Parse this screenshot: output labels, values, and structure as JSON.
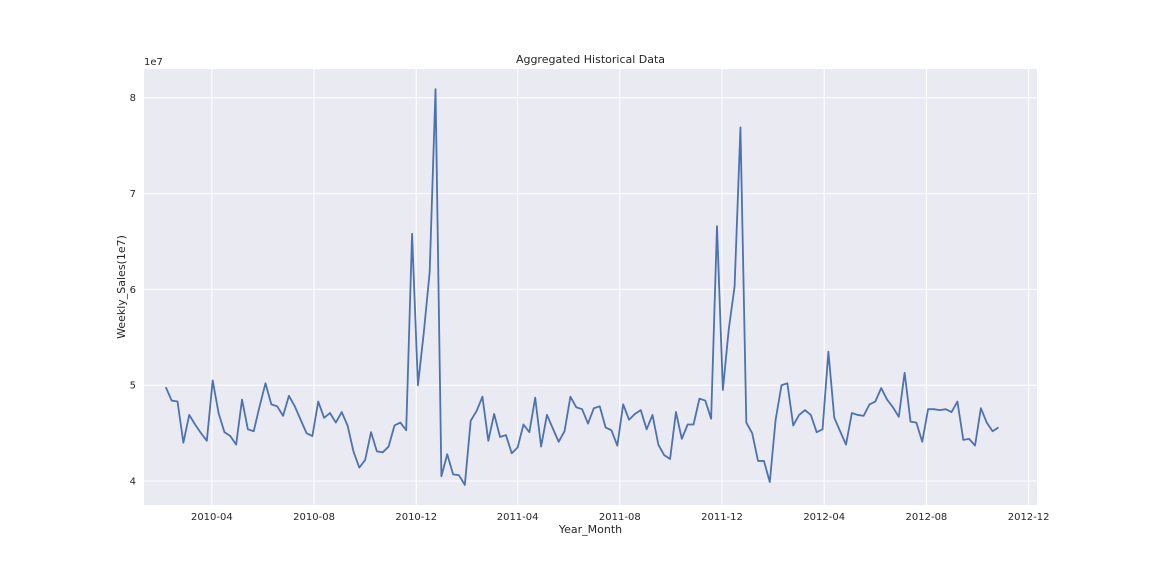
{
  "chart_data": {
    "type": "line",
    "title": "Aggregated Historical Data",
    "xlabel": "Year_Month",
    "ylabel": "Weekly_Sales(1e7)",
    "y_offset_text": "1e7",
    "y_unit_multiplier": 10000000,
    "grid": true,
    "legend": "none",
    "line_color": "#4c72b0",
    "background_color": "#eaeaf2",
    "grid_color": "#ffffff",
    "xlim": [
      "2010-01-10",
      "2012-12-11"
    ],
    "ylim": [
      3.75,
      8.3
    ],
    "x_ticks": [
      "2010-04-01",
      "2010-08-01",
      "2010-12-01",
      "2011-04-01",
      "2011-08-01",
      "2011-12-01",
      "2012-04-01",
      "2012-08-01",
      "2012-12-01"
    ],
    "x_tick_labels": [
      "2010-04",
      "2010-08",
      "2010-12",
      "2011-04",
      "2011-08",
      "2011-12",
      "2012-04",
      "2012-08",
      "2012-12"
    ],
    "y_ticks": [
      4,
      5,
      6,
      7,
      8
    ],
    "y_tick_labels": [
      "4",
      "5",
      "6",
      "7",
      "8"
    ],
    "series": [
      {
        "x": [
          "2010-02-05",
          "2010-02-12",
          "2010-02-19",
          "2010-02-26",
          "2010-03-05",
          "2010-03-12",
          "2010-03-19",
          "2010-03-26",
          "2010-04-02",
          "2010-04-09",
          "2010-04-16",
          "2010-04-23",
          "2010-04-30",
          "2010-05-07",
          "2010-05-14",
          "2010-05-21",
          "2010-05-28",
          "2010-06-04",
          "2010-06-11",
          "2010-06-18",
          "2010-06-25",
          "2010-07-02",
          "2010-07-09",
          "2010-07-16",
          "2010-07-23",
          "2010-07-30",
          "2010-08-06",
          "2010-08-13",
          "2010-08-20",
          "2010-08-27",
          "2010-09-03",
          "2010-09-10",
          "2010-09-17",
          "2010-09-24",
          "2010-10-01",
          "2010-10-08",
          "2010-10-15",
          "2010-10-22",
          "2010-10-29",
          "2010-11-05",
          "2010-11-12",
          "2010-11-19",
          "2010-11-26",
          "2010-12-03",
          "2010-12-10",
          "2010-12-17",
          "2010-12-24",
          "2010-12-31",
          "2011-01-07",
          "2011-01-14",
          "2011-01-21",
          "2011-01-28",
          "2011-02-04",
          "2011-02-11",
          "2011-02-18",
          "2011-02-25",
          "2011-03-04",
          "2011-03-11",
          "2011-03-18",
          "2011-03-25",
          "2011-04-01",
          "2011-04-08",
          "2011-04-15",
          "2011-04-22",
          "2011-04-29",
          "2011-05-06",
          "2011-05-13",
          "2011-05-20",
          "2011-05-27",
          "2011-06-03",
          "2011-06-10",
          "2011-06-17",
          "2011-06-24",
          "2011-07-01",
          "2011-07-08",
          "2011-07-15",
          "2011-07-22",
          "2011-07-29",
          "2011-08-05",
          "2011-08-12",
          "2011-08-19",
          "2011-08-26",
          "2011-09-02",
          "2011-09-09",
          "2011-09-16",
          "2011-09-23",
          "2011-09-30",
          "2011-10-07",
          "2011-10-14",
          "2011-10-21",
          "2011-10-28",
          "2011-11-04",
          "2011-11-11",
          "2011-11-18",
          "2011-11-25",
          "2011-12-02",
          "2011-12-09",
          "2011-12-16",
          "2011-12-23",
          "2011-12-30",
          "2012-01-06",
          "2012-01-13",
          "2012-01-20",
          "2012-01-27",
          "2012-02-03",
          "2012-02-10",
          "2012-02-17",
          "2012-02-24",
          "2012-03-02",
          "2012-03-09",
          "2012-03-16",
          "2012-03-23",
          "2012-03-30",
          "2012-04-06",
          "2012-04-13",
          "2012-04-20",
          "2012-04-27",
          "2012-05-04",
          "2012-05-11",
          "2012-05-18",
          "2012-05-25",
          "2012-06-01",
          "2012-06-08",
          "2012-06-15",
          "2012-06-22",
          "2012-06-29",
          "2012-07-06",
          "2012-07-13",
          "2012-07-20",
          "2012-07-27",
          "2012-08-03",
          "2012-08-10",
          "2012-08-17",
          "2012-08-24",
          "2012-08-31",
          "2012-09-07",
          "2012-09-14",
          "2012-09-21",
          "2012-09-28",
          "2012-10-05",
          "2012-10-12",
          "2012-10-19",
          "2012-10-26"
        ],
        "y": [
          4.98,
          4.84,
          4.83,
          4.4,
          4.69,
          4.59,
          4.5,
          4.42,
          5.05,
          4.71,
          4.51,
          4.47,
          4.38,
          4.85,
          4.54,
          4.52,
          4.78,
          5.02,
          4.8,
          4.78,
          4.68,
          4.89,
          4.78,
          4.64,
          4.5,
          4.47,
          4.83,
          4.66,
          4.71,
          4.61,
          4.72,
          4.58,
          4.31,
          4.14,
          4.22,
          4.51,
          4.31,
          4.3,
          4.36,
          4.58,
          4.61,
          4.53,
          6.58,
          5.0,
          5.55,
          6.18,
          8.09,
          4.05,
          4.28,
          4.07,
          4.06,
          3.96,
          4.63,
          4.73,
          4.88,
          4.42,
          4.7,
          4.46,
          4.48,
          4.29,
          4.35,
          4.59,
          4.51,
          4.87,
          4.36,
          4.69,
          4.55,
          4.41,
          4.52,
          4.88,
          4.77,
          4.75,
          4.6,
          4.76,
          4.78,
          4.56,
          4.53,
          4.37,
          4.8,
          4.64,
          4.7,
          4.74,
          4.54,
          4.69,
          4.38,
          4.27,
          4.23,
          4.72,
          4.44,
          4.59,
          4.59,
          4.86,
          4.84,
          4.65,
          6.66,
          4.95,
          5.58,
          6.03,
          7.69,
          4.61,
          4.5,
          4.21,
          4.21,
          3.99,
          4.64,
          5.0,
          5.02,
          4.58,
          4.69,
          4.74,
          4.69,
          4.51,
          4.54,
          5.35,
          4.66,
          4.52,
          4.38,
          4.71,
          4.69,
          4.68,
          4.8,
          4.83,
          4.97,
          4.85,
          4.77,
          4.67,
          5.13,
          4.62,
          4.61,
          4.41,
          4.75,
          4.75,
          4.74,
          4.75,
          4.72,
          4.83,
          4.43,
          4.44,
          4.37,
          4.76,
          4.61,
          4.52,
          4.56
        ]
      }
    ]
  }
}
